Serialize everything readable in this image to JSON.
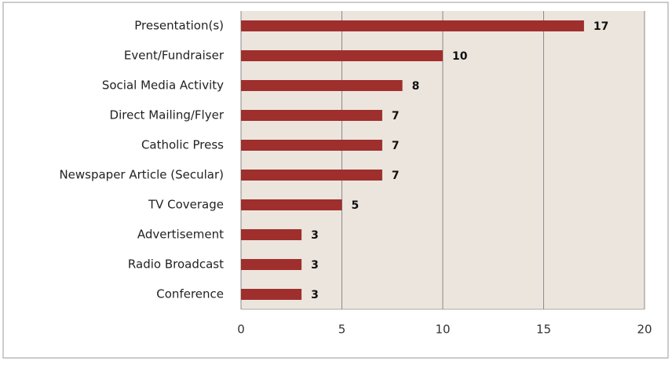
{
  "chart_data": {
    "type": "bar",
    "orientation": "horizontal",
    "categories": [
      "Presentation(s)",
      "Event/Fundraiser",
      "Social Media Activity",
      "Direct Mailing/Flyer",
      "Catholic Press",
      "Newspaper Article (Secular)",
      "TV Coverage",
      "Advertisement",
      "Radio Broadcast",
      "Conference"
    ],
    "values": [
      17,
      10,
      8,
      7,
      7,
      7,
      5,
      3,
      3,
      3
    ],
    "color": "#9e2f2c",
    "xlim": [
      0,
      20
    ],
    "xticks": [
      0,
      5,
      10,
      15,
      20
    ],
    "grid": true
  }
}
